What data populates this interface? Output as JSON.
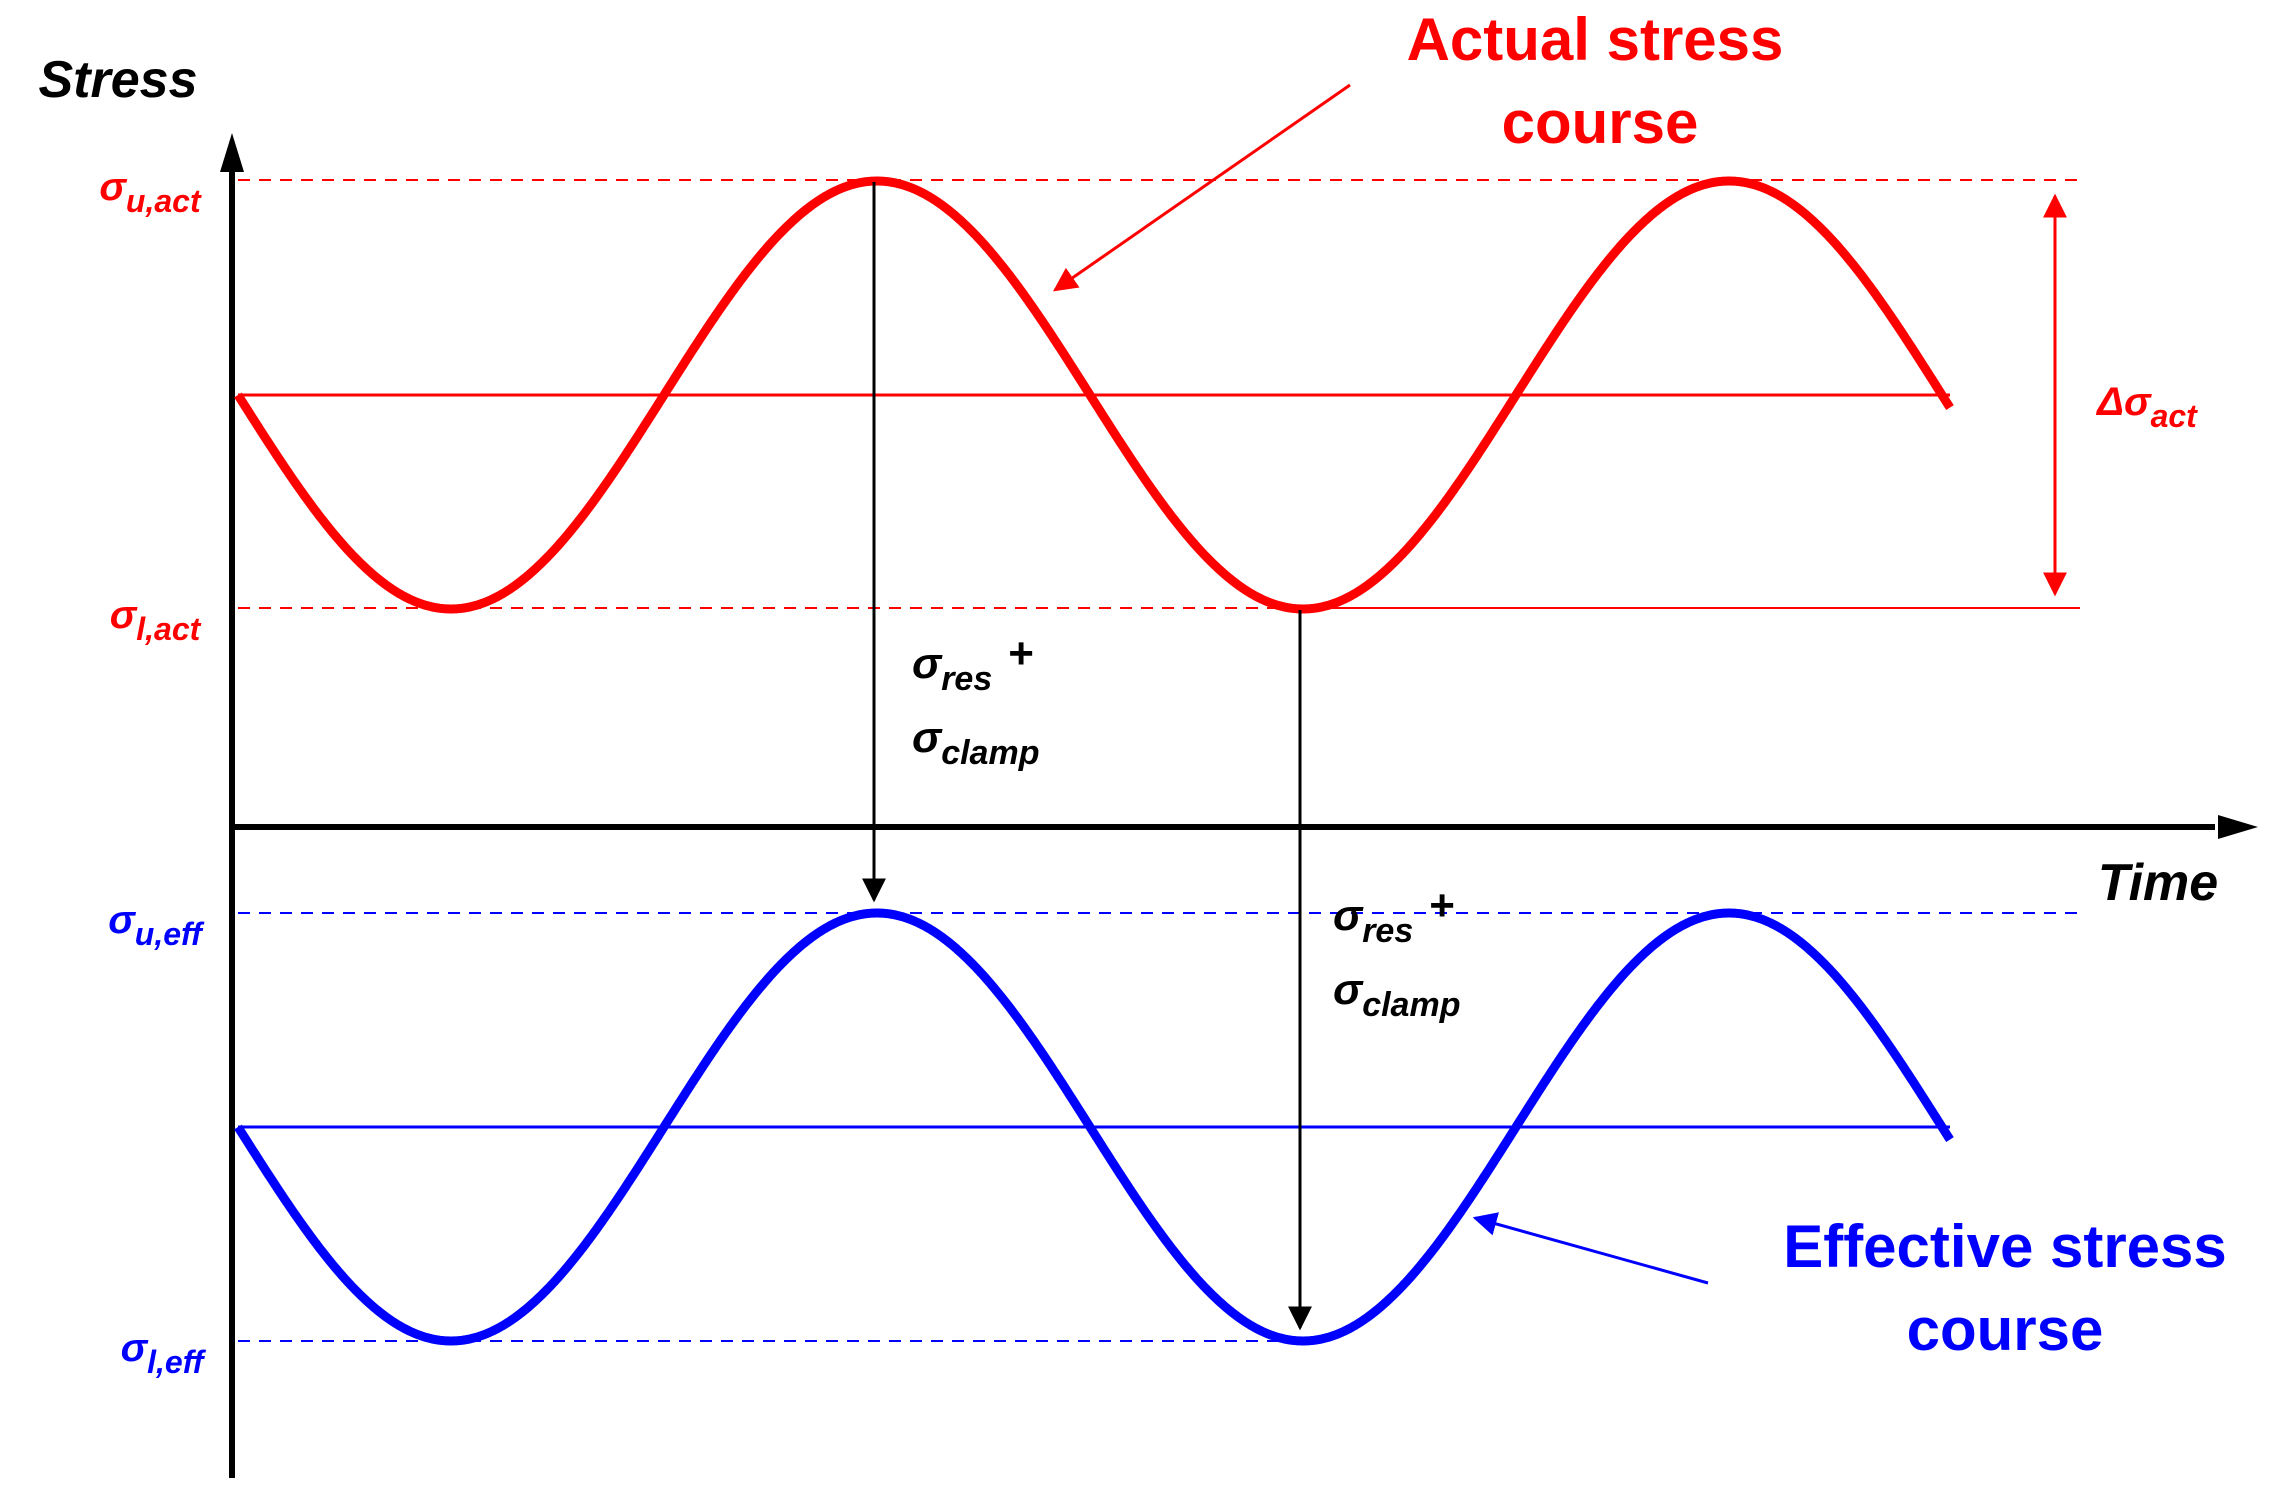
{
  "axis": {
    "y_label": "Stress",
    "x_label": "Time"
  },
  "actual": {
    "title_line1": "Actual stress",
    "title_line2": "course",
    "upper": {
      "sym": "σ",
      "sub": "u,act"
    },
    "lower": {
      "sym": "σ",
      "sub": "l,act"
    },
    "range": {
      "sym": "Δσ",
      "sub": "act"
    }
  },
  "effective": {
    "title_line1": "Effective stress",
    "title_line2": "course",
    "upper": {
      "sym": "σ",
      "sub": "u,eff"
    },
    "lower": {
      "sym": "σ",
      "sub": "l,eff"
    }
  },
  "shift_label": {
    "res_sym": "σ",
    "res_sub": "res",
    "plus": "+",
    "clamp_sym": "σ",
    "clamp_sub": "clamp"
  },
  "colors": {
    "actual": "#ff0000",
    "effective": "#0000ff",
    "axis": "#000000"
  }
}
